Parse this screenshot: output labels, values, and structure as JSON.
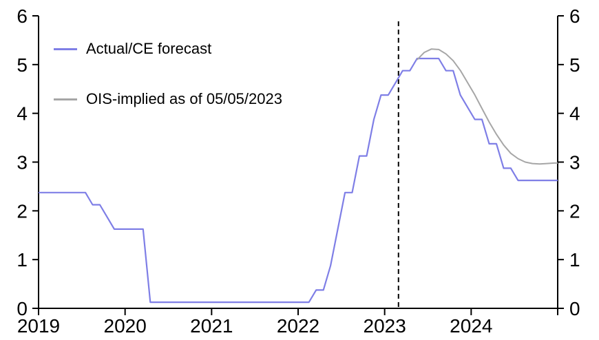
{
  "chart_data": {
    "type": "line",
    "title": "",
    "xlabel": "",
    "ylabel": "",
    "xlim": [
      2019,
      2025
    ],
    "ylim": [
      0,
      6
    ],
    "grid": false,
    "y_ticks": [
      0,
      1,
      2,
      3,
      4,
      5,
      6
    ],
    "y_tick_labels": [
      "0",
      "1",
      "2",
      "3",
      "4",
      "5",
      "6"
    ],
    "y_axis_sides": [
      "left",
      "right"
    ],
    "x_ticks": [
      2019,
      2020,
      2021,
      2022,
      2023,
      2024
    ],
    "x_tick_labels": [
      "2019",
      "2020",
      "2021",
      "2022",
      "2023",
      "2024"
    ],
    "axis_color": "#000000",
    "vline": {
      "x": 2023.16,
      "style": "dashed",
      "color": "#000000",
      "meaning": "forecast cutoff"
    },
    "series": [
      {
        "name": "Actual/CE forecast",
        "color": "#7E7EE6",
        "width": 2.2,
        "frequency": "monthly",
        "start_year": 2019,
        "start_month": 1,
        "extend_left": true,
        "extend_right": true,
        "values": [
          2.375,
          2.375,
          2.375,
          2.375,
          2.375,
          2.375,
          2.375,
          2.125,
          2.125,
          1.875,
          1.625,
          1.625,
          1.625,
          1.625,
          1.625,
          0.125,
          0.125,
          0.125,
          0.125,
          0.125,
          0.125,
          0.125,
          0.125,
          0.125,
          0.125,
          0.125,
          0.125,
          0.125,
          0.125,
          0.125,
          0.125,
          0.125,
          0.125,
          0.125,
          0.125,
          0.125,
          0.125,
          0.125,
          0.375,
          0.375,
          0.875,
          1.625,
          2.375,
          2.375,
          3.125,
          3.125,
          3.875,
          4.375,
          4.375,
          4.625,
          4.875,
          4.875,
          5.125,
          5.125,
          5.125,
          5.125,
          4.875,
          4.875,
          4.375,
          4.125,
          3.875,
          3.875,
          3.375,
          3.375,
          2.875,
          2.875,
          2.625,
          2.625,
          2.625,
          2.625,
          2.625,
          2.625
        ]
      },
      {
        "name": "OIS-implied as of 05/05/2023",
        "color": "#A6A6A6",
        "width": 2,
        "frequency": "monthly",
        "start_year": 2023,
        "start_month": 5,
        "extend_left": false,
        "extend_right": true,
        "values": [
          5.1,
          5.25,
          5.32,
          5.31,
          5.22,
          5.08,
          4.88,
          4.63,
          4.38,
          4.1,
          3.82,
          3.57,
          3.35,
          3.18,
          3.07,
          3.0,
          2.97,
          2.96,
          2.97,
          2.98
        ]
      }
    ],
    "legend": [
      {
        "label": "Actual/CE forecast",
        "color": "#7E7EE6"
      },
      {
        "label": "OIS-implied as of 05/05/2023",
        "color": "#A6A6A6"
      }
    ],
    "legend_position": "upper-left-inside"
  },
  "colors": {
    "background": "#ffffff",
    "axis": "#000000",
    "text": "#000000"
  }
}
